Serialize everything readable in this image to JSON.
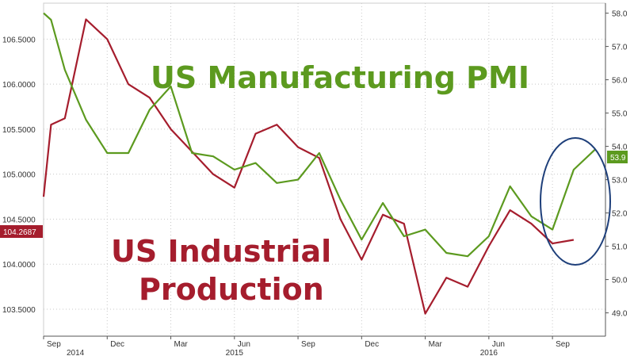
{
  "chart_data": {
    "type": "line",
    "annotations": {
      "pmi_title": "US Manufacturing PMI",
      "ip_title_line1": "US Industrial",
      "ip_title_line2": "Production"
    },
    "x_ticks": [
      {
        "label": "Sep",
        "index": 0
      },
      {
        "label": "Dec",
        "index": 3
      },
      {
        "label": "Mar",
        "index": 6
      },
      {
        "label": "Jun",
        "index": 9
      },
      {
        "label": "Sep",
        "index": 12
      },
      {
        "label": "Dec",
        "index": 15
      },
      {
        "label": "Mar",
        "index": 18
      },
      {
        "label": "Jun",
        "index": 21
      },
      {
        "label": "Sep",
        "index": 24
      }
    ],
    "x_year_labels": [
      {
        "label": "2014",
        "index": 1.5
      },
      {
        "label": "2015",
        "index": 9
      },
      {
        "label": "2016",
        "index": 21
      }
    ],
    "x_range": [
      0,
      26.5
    ],
    "left_axis": {
      "ticks": [
        "106.5000",
        "106.0000",
        "105.5000",
        "105.0000",
        "104.5000",
        "104.0000",
        "103.5000"
      ],
      "tick_values": [
        106.5,
        106.0,
        105.5,
        105.0,
        104.5,
        104.0,
        103.5
      ],
      "ylim": [
        103.2,
        106.9
      ]
    },
    "right_axis": {
      "ticks": [
        "58.0",
        "57.0",
        "56.0",
        "55.0",
        "54.0",
        "53.0",
        "52.0",
        "51.0",
        "50.0",
        "49.0"
      ],
      "tick_values": [
        58,
        57,
        56,
        55,
        54,
        53,
        52,
        51,
        50,
        49
      ],
      "ylim": [
        48.3,
        58.3
      ]
    },
    "series": [
      {
        "name": "US Industrial Production",
        "color": "#a51d2d",
        "axis": "left",
        "x": [
          0,
          0.35,
          1,
          2,
          3,
          4,
          5,
          6,
          7,
          8,
          9,
          10,
          11,
          12,
          13,
          14,
          15,
          16,
          17,
          18,
          19,
          20,
          21,
          22,
          23,
          24,
          25
        ],
        "values": [
          104.75,
          105.55,
          105.62,
          106.72,
          106.5,
          106.0,
          105.85,
          105.5,
          105.25,
          105.0,
          104.85,
          105.45,
          105.55,
          105.3,
          105.18,
          104.5,
          104.05,
          104.55,
          104.45,
          103.45,
          103.85,
          103.75,
          104.2,
          104.6,
          104.45,
          104.23,
          104.27
        ],
        "last_value_label": "104.2687"
      },
      {
        "name": "US Manufacturing PMI",
        "color": "#5c9a1f",
        "axis": "right",
        "x": [
          0,
          0.35,
          1,
          2,
          3,
          4,
          5,
          6,
          7,
          8,
          9,
          10,
          11,
          12,
          13,
          14,
          15,
          16,
          17,
          18,
          19,
          20,
          21,
          22,
          23,
          24,
          25,
          26
        ],
        "values": [
          58.0,
          57.8,
          56.3,
          54.8,
          53.8,
          53.8,
          55.1,
          55.8,
          53.8,
          53.7,
          53.3,
          53.5,
          52.9,
          53.0,
          53.8,
          52.4,
          51.2,
          52.3,
          51.3,
          51.5,
          50.8,
          50.7,
          51.3,
          52.8,
          51.9,
          51.5,
          53.3,
          53.9
        ],
        "last_value_label": "53.9"
      }
    ],
    "grid": "dotted",
    "highlight": "ellipse around latest PMI rise"
  }
}
